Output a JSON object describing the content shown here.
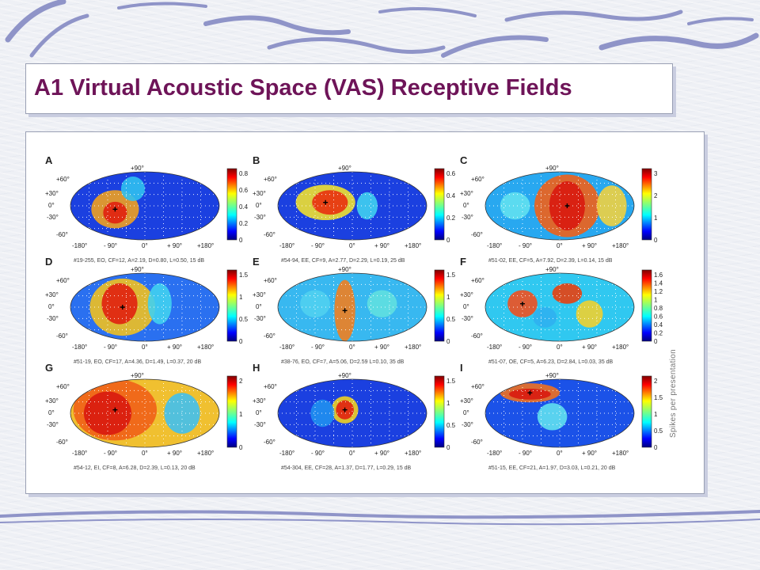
{
  "slide": {
    "title": "A1 Virtual Acoustic Space (VAS) Receptive Fields",
    "colorbar_axis_label": "Spikes per presentation"
  },
  "axis_labels": {
    "lat": [
      "+90°",
      "+60°",
      "+30°",
      "0°",
      "-30°",
      "-60°"
    ],
    "lon": [
      "-180°",
      "- 90°",
      "0°",
      "+ 90°",
      "+180°"
    ]
  },
  "panels": [
    {
      "letter": "A",
      "caption": "#19-255,  EO,  CF=12,  A=2.19,  D=0.80,  L=0.50,  15 dB",
      "colorbar_ticks": [
        "0.8",
        "0.6",
        "0.4",
        "0.2",
        "0"
      ]
    },
    {
      "letter": "B",
      "caption": "#54-94,  EE,  CF=9,  A=2.77,  D=2.29,  L=0.19,  25 dB",
      "colorbar_ticks": [
        "0.6",
        "0.4",
        "0.2",
        "0"
      ]
    },
    {
      "letter": "C",
      "caption": "#51-02,  EE,  CF=5,  A=7.92,  D=2.39,  L=0.14,  15 dB",
      "colorbar_ticks": [
        "3",
        "2",
        "1",
        "0"
      ]
    },
    {
      "letter": "D",
      "caption": "#51-19,  EO,  CF=17,  A=4.36,  D=1.49,  L=0.37,   20 dB",
      "colorbar_ticks": [
        "1.5",
        "1",
        "0.5",
        "0"
      ]
    },
    {
      "letter": "E",
      "caption": "#38-76,  EO,  CF=7,  A=5.06,  D=2.59  L=0.10,  35 dB",
      "colorbar_ticks": [
        "1.5",
        "1",
        "0.5",
        "0"
      ]
    },
    {
      "letter": "F",
      "caption": "#51-07,  OE,  CF=5,  A=6.23,  D=2.84,  L=0.03,  35 dB",
      "colorbar_ticks": [
        "1.6",
        "1.4",
        "1.2",
        "1",
        "0.8",
        "0.6",
        "0.4",
        "0.2",
        "0"
      ]
    },
    {
      "letter": "G",
      "caption": "#54-12,  EI,  CF=8,  A=6.28,  D=2.39,  L=0.13,  20 dB",
      "colorbar_ticks": [
        "2",
        "1",
        "0"
      ]
    },
    {
      "letter": "H",
      "caption": "#54-304,  EE,  CF=28,  A=1.37,  D=1.77,  L=0.29,  15 dB",
      "colorbar_ticks": [
        "1.5",
        "1",
        "0.5",
        "0"
      ]
    },
    {
      "letter": "I",
      "caption": "#51-15,  EE,  CF=21,  A=1.97,  D=3.03,  L=0.21,  20 dB",
      "colorbar_ticks": [
        "2",
        "1.5",
        "1",
        "0.5",
        "0"
      ]
    }
  ],
  "colors": {
    "title": "#6e1458",
    "map_blue": "#1636c8",
    "map_red": "#d81a10"
  }
}
